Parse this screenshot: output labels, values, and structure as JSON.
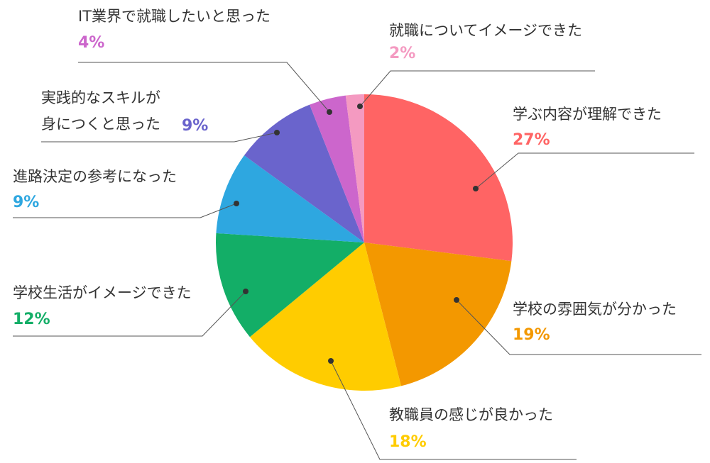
{
  "chart_data": {
    "type": "pie",
    "start_angle_deg": 0,
    "direction": "clockwise",
    "slices": [
      {
        "label": "学ぶ内容が理解できた",
        "value": 27,
        "display": "27%",
        "color": "#FF6464"
      },
      {
        "label": "学校の雰囲気が分かった",
        "value": 19,
        "display": "19%",
        "color": "#F39800"
      },
      {
        "label": "教職員の感じが良かった",
        "value": 18,
        "display": "18%",
        "color": "#FFCC00"
      },
      {
        "label": "学校生活がイメージできた",
        "value": 12,
        "display": "12%",
        "color": "#13AE67"
      },
      {
        "label": "進路決定の参考になった",
        "value": 9,
        "display": "9%",
        "color": "#2EA7E0"
      },
      {
        "label": "実践的なスキルが\n身につくと思った",
        "value": 9,
        "display": "9%",
        "color": "#6A64CC"
      },
      {
        "label": "IT業界で就職したいと思った",
        "value": 4,
        "display": "4%",
        "color": "#CC66CC"
      },
      {
        "label": "就職についてイメージできた",
        "value": 2,
        "display": "2%",
        "color": "#F49AC1"
      }
    ]
  }
}
